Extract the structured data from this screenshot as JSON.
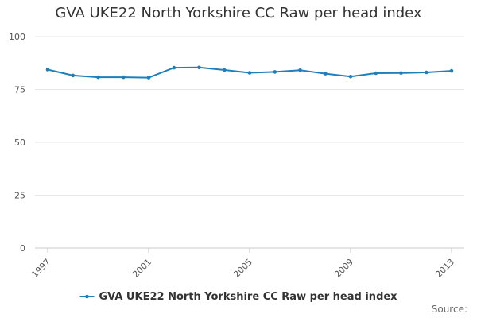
{
  "chart_data": {
    "type": "line",
    "title": "GVA UKE22 North Yorkshire CC Raw per head index",
    "xlabel": "",
    "ylabel": "",
    "x": [
      1997,
      1998,
      1999,
      2000,
      2001,
      2002,
      2003,
      2004,
      2005,
      2006,
      2007,
      2008,
      2009,
      2010,
      2011,
      2012,
      2013
    ],
    "x_tick_labels": [
      "1997",
      "2001",
      "2005",
      "2009",
      "2013"
    ],
    "x_ticks": [
      1997,
      2001,
      2005,
      2009,
      2013
    ],
    "xlim": [
      1997,
      2013
    ],
    "ylim": [
      0,
      100
    ],
    "y_ticks": [
      0,
      25,
      50,
      75,
      100
    ],
    "y_tick_labels": [
      "0",
      "25",
      "50",
      "75",
      "100"
    ],
    "grid": true,
    "legend_position": "bottom",
    "series": [
      {
        "name": "GVA UKE22 North Yorkshire CC Raw per head index",
        "color": "#1f7fba",
        "values": [
          84.4,
          81.6,
          80.8,
          80.8,
          80.6,
          85.3,
          85.4,
          84.2,
          82.9,
          83.3,
          84.1,
          82.5,
          81.1,
          82.7,
          82.8,
          83.1,
          83.8
        ]
      }
    ]
  },
  "source_label": "Source:"
}
